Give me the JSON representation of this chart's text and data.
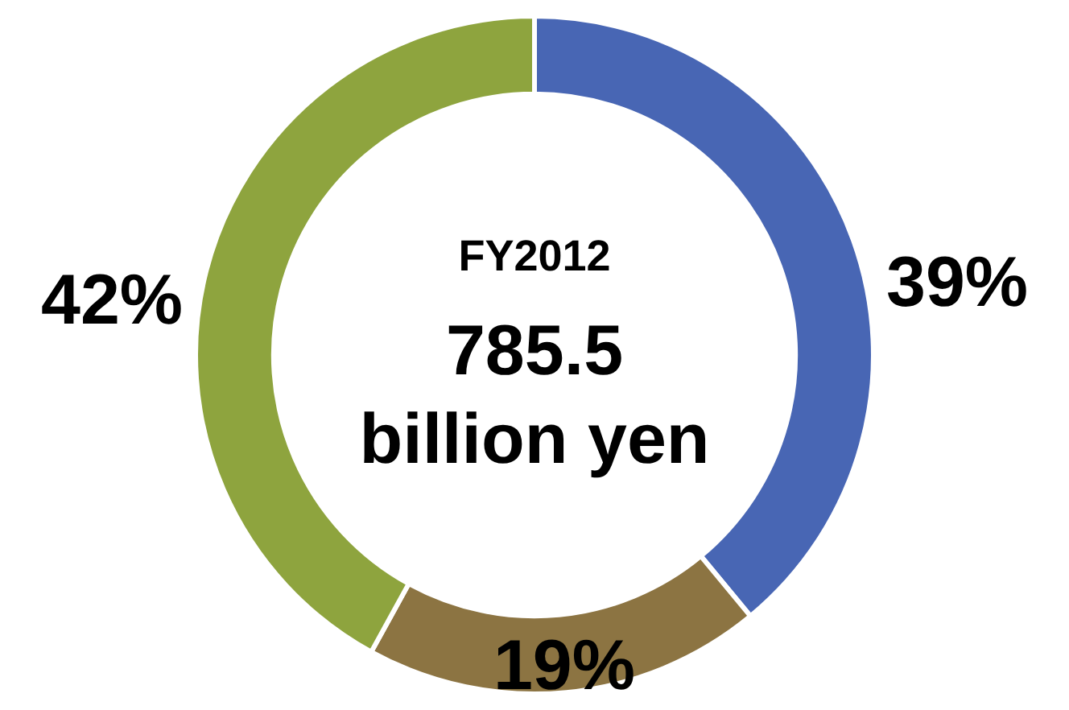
{
  "chart_data": {
    "type": "donut",
    "title": "FY2012",
    "annotations": [
      "785.5",
      "billion yen"
    ],
    "categories": [
      null,
      null,
      null
    ],
    "values": [
      39,
      19,
      42
    ],
    "colors": [
      "#4866b4",
      "#8c7442",
      "#8ea43e"
    ],
    "value_labels": [
      "39%",
      "19%",
      "42%"
    ],
    "legend": false
  }
}
